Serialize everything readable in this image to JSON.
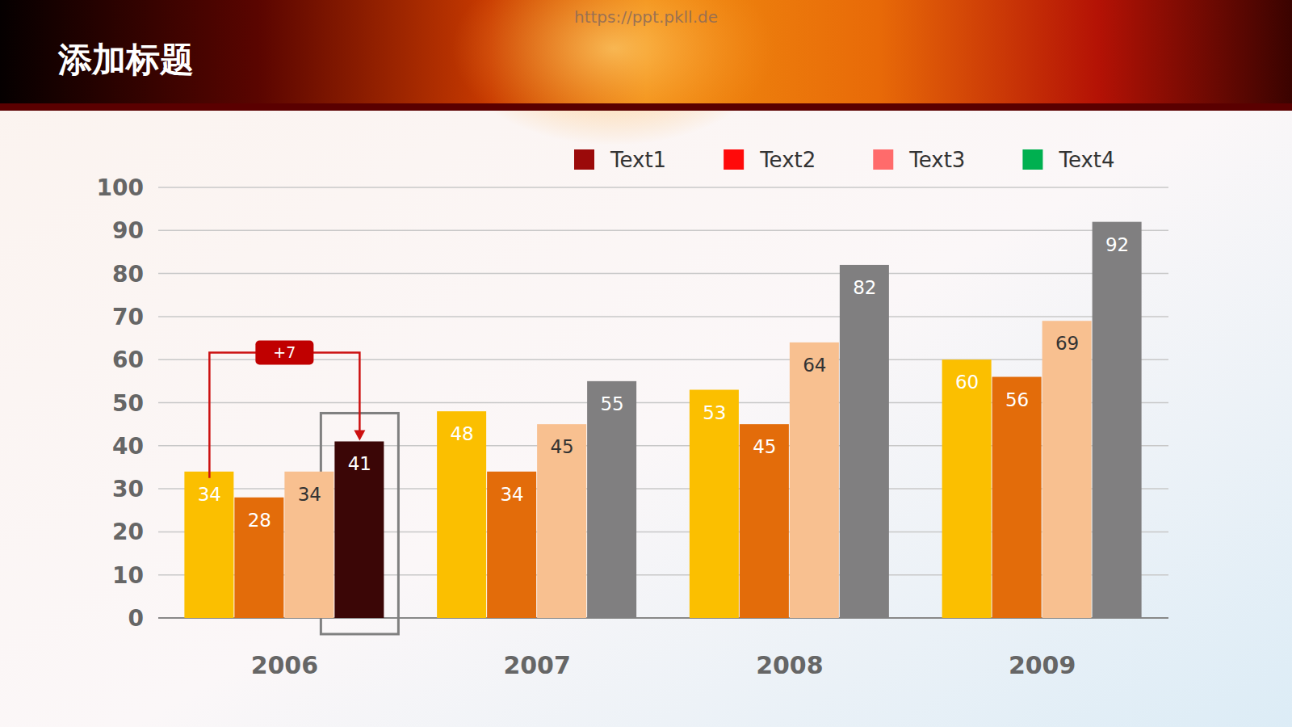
{
  "chart_data": {
    "type": "bar",
    "title": "添加标题",
    "annotations": [
      "+7",
      "https://ppt.pkll.de"
    ],
    "categories": [
      "2006",
      "2007",
      "2008",
      "2009"
    ],
    "series": [
      {
        "name": "Text1",
        "color": "#9b0a0a",
        "colors": [
          "#fbbf00",
          "#fbbf00",
          "#fbbf00",
          "#fbbf00"
        ],
        "values": [
          34,
          48,
          53,
          60
        ]
      },
      {
        "name": "Text2",
        "color": "#ff0a0a",
        "colors": [
          "#e36c0a",
          "#e36c0a",
          "#e36c0a",
          "#e36c0a"
        ],
        "values": [
          28,
          34,
          45,
          56
        ]
      },
      {
        "name": "Text3",
        "color": "#ff6b6b",
        "colors": [
          "#f8c090",
          "#f8c090",
          "#f8c090",
          "#f8c090"
        ],
        "values": [
          34,
          45,
          64,
          69
        ]
      },
      {
        "name": "Text4",
        "color": "#00b050",
        "colors": [
          "#3b0606",
          "#807f80",
          "#807f80",
          "#807f80"
        ],
        "values": [
          41,
          55,
          82,
          92
        ]
      }
    ],
    "ylim": [
      0,
      100
    ],
    "yticks": [
      0,
      10,
      20,
      30,
      40,
      50,
      60,
      70,
      80,
      90,
      100
    ],
    "grid": true,
    "legend": "top",
    "data_labels": true
  }
}
